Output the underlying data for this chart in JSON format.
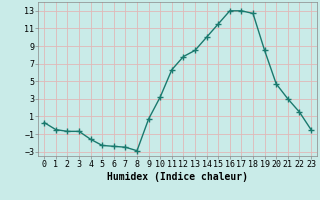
{
  "x": [
    0,
    1,
    2,
    3,
    4,
    5,
    6,
    7,
    8,
    9,
    10,
    11,
    12,
    13,
    14,
    15,
    16,
    17,
    18,
    19,
    20,
    21,
    22,
    23
  ],
  "y": [
    0.3,
    -0.5,
    -0.7,
    -0.7,
    -1.6,
    -2.3,
    -2.4,
    -2.5,
    -2.9,
    0.7,
    3.2,
    6.3,
    7.8,
    8.5,
    10.0,
    11.5,
    13.0,
    13.0,
    12.7,
    8.5,
    4.7,
    3.0,
    1.5,
    -0.5
  ],
  "line_color": "#1a7a6e",
  "bg_color": "#c9ebe8",
  "grid_color": "#e0b8b8",
  "title": "",
  "xlabel": "Humidex (Indice chaleur)",
  "ylabel": "",
  "xlim": [
    -0.5,
    23.5
  ],
  "ylim": [
    -3.5,
    14.0
  ],
  "yticks": [
    -3,
    -1,
    1,
    3,
    5,
    7,
    9,
    11,
    13
  ],
  "xticks": [
    0,
    1,
    2,
    3,
    4,
    5,
    6,
    7,
    8,
    9,
    10,
    11,
    12,
    13,
    14,
    15,
    16,
    17,
    18,
    19,
    20,
    21,
    22,
    23
  ],
  "marker": "+",
  "markersize": 4,
  "linewidth": 1.0,
  "xlabel_fontsize": 7,
  "tick_fontsize": 6
}
